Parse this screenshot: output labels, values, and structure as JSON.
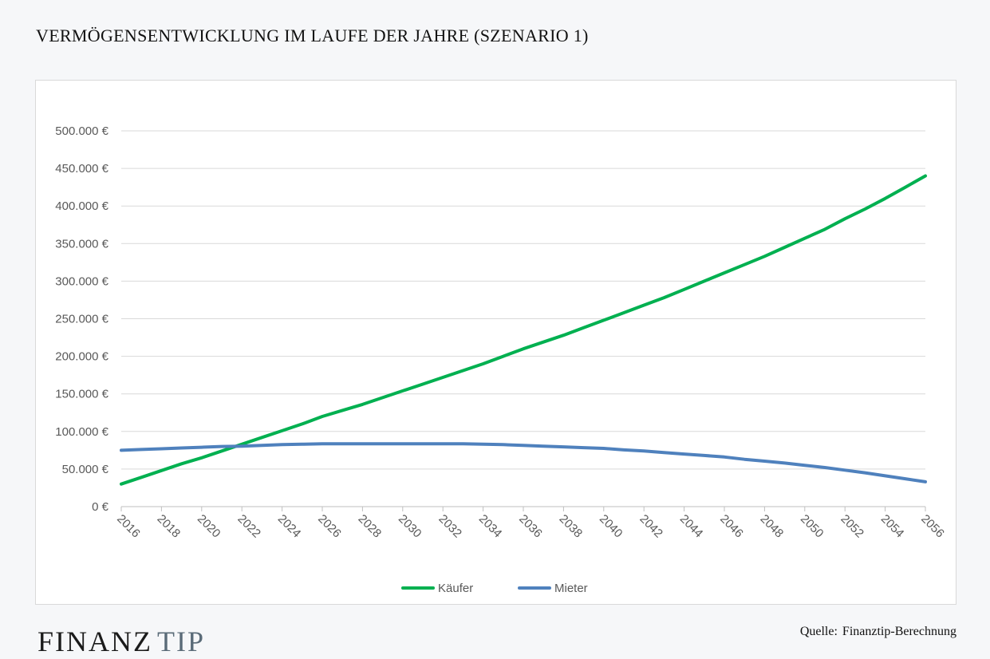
{
  "page": {
    "title": "VERMÖGENSENTWICKLUNG IM LAUFE DER JAHRE (SZENARIO 1)",
    "brand_part1": "FINANZ",
    "brand_part2": "TIP",
    "source_label": "Quelle:",
    "source_value": "Finanztip-Berechnung"
  },
  "chart_data": {
    "type": "line",
    "title": "",
    "xlabel": "",
    "ylabel": "",
    "x": [
      2016,
      2017,
      2018,
      2019,
      2020,
      2021,
      2022,
      2023,
      2024,
      2025,
      2026,
      2027,
      2028,
      2029,
      2030,
      2031,
      2032,
      2033,
      2034,
      2035,
      2036,
      2037,
      2038,
      2039,
      2040,
      2041,
      2042,
      2043,
      2044,
      2045,
      2046,
      2047,
      2048,
      2049,
      2050,
      2051,
      2052,
      2053,
      2054,
      2055,
      2056
    ],
    "x_tick_labels": [
      "2016",
      "2018",
      "2020",
      "2022",
      "2024",
      "2026",
      "2028",
      "2030",
      "2032",
      "2034",
      "2036",
      "2038",
      "2040",
      "2042",
      "2044",
      "2046",
      "2048",
      "2050",
      "2052",
      "2054",
      "2056"
    ],
    "ylim": [
      0,
      500000
    ],
    "y_tick_labels": [
      "0 €",
      "50.000 €",
      "100.000 €",
      "150.000 €",
      "200.000 €",
      "250.000 €",
      "300.000 €",
      "350.000 €",
      "400.000 €",
      "450.000 €",
      "500.000 €"
    ],
    "grid": true,
    "legend_position": "bottom-center",
    "series": [
      {
        "name": "Käufer",
        "color": "#00b050",
        "values": [
          30000,
          39000,
          48000,
          57000,
          65000,
          74000,
          83000,
          92000,
          101000,
          110000,
          120000,
          128000,
          136000,
          145000,
          154000,
          163000,
          172000,
          181000,
          190000,
          200000,
          210000,
          219000,
          228000,
          238000,
          248000,
          258000,
          268000,
          278000,
          289000,
          300000,
          311000,
          322000,
          333000,
          345000,
          357000,
          369000,
          383000,
          396000,
          410000,
          425000,
          440000
        ]
      },
      {
        "name": "Mieter",
        "color": "#4f81bd",
        "values": [
          75000,
          76000,
          77000,
          78000,
          79000,
          80000,
          80500,
          81500,
          82500,
          83000,
          83500,
          83500,
          83500,
          83500,
          83500,
          83500,
          83500,
          83500,
          83000,
          82500,
          81500,
          80500,
          79500,
          78500,
          77500,
          75500,
          74000,
          72000,
          70000,
          68000,
          66000,
          63000,
          60500,
          58000,
          55000,
          52000,
          48500,
          45000,
          41000,
          37000,
          33000
        ]
      }
    ]
  }
}
